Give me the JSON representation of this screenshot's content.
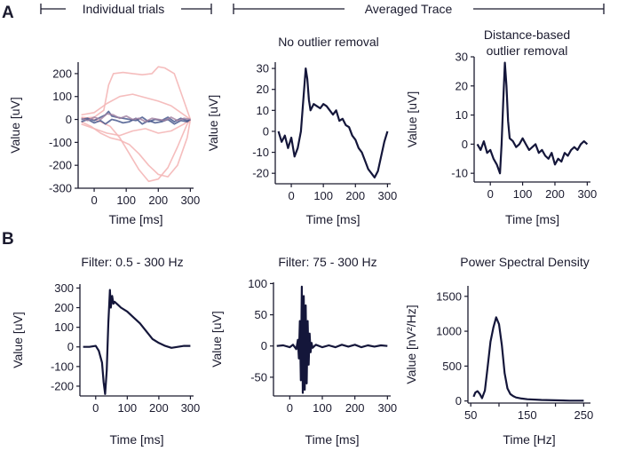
{
  "figure": {
    "panel_a": "A",
    "panel_b": "B",
    "header_left": "Individual trials",
    "header_right": "Averaged Trace",
    "colors": {
      "ink": "#1a1a2e",
      "trace": "#14163a",
      "trial_light": "#f4b6b6",
      "trial_dark": "#3d4f86",
      "trial_mid": "#a07fa0"
    }
  },
  "chart_data": [
    {
      "type": "line",
      "title": "",
      "xlabel": "Time [ms]",
      "ylabel": "Value [uV]",
      "xlim": [
        -50,
        310
      ],
      "ylim": [
        -300,
        250
      ],
      "xticks": [
        0,
        100,
        200,
        300
      ],
      "yticks": [
        -300,
        -200,
        -100,
        0,
        100,
        200
      ],
      "series": [
        {
          "name": "trial-1",
          "style": "light",
          "x": [
            -40,
            -10,
            20,
            50,
            80,
            110,
            140,
            170,
            200,
            230,
            260,
            290,
            300
          ],
          "y": [
            10,
            5,
            -10,
            -30,
            -80,
            -150,
            -220,
            -270,
            -260,
            -210,
            -120,
            -20,
            0
          ]
        },
        {
          "name": "trial-2",
          "style": "light",
          "x": [
            -40,
            -10,
            20,
            50,
            80,
            110,
            140,
            170,
            200,
            230,
            260,
            290,
            300
          ],
          "y": [
            -10,
            -30,
            -60,
            -80,
            -90,
            -110,
            -150,
            -200,
            -240,
            -250,
            -200,
            -80,
            0
          ]
        },
        {
          "name": "trial-3",
          "style": "light",
          "x": [
            -40,
            0,
            30,
            45,
            60,
            90,
            120,
            150,
            180,
            200,
            220,
            250,
            280,
            300
          ],
          "y": [
            5,
            10,
            40,
            150,
            200,
            205,
            200,
            195,
            200,
            230,
            225,
            200,
            80,
            0
          ]
        },
        {
          "name": "trial-4",
          "style": "light",
          "x": [
            -40,
            0,
            40,
            80,
            120,
            160,
            200,
            240,
            270,
            300
          ],
          "y": [
            20,
            30,
            70,
            100,
            110,
            95,
            80,
            60,
            30,
            0
          ]
        },
        {
          "name": "trial-5",
          "style": "light",
          "x": [
            -40,
            0,
            40,
            80,
            120,
            160,
            200,
            240,
            280,
            300
          ],
          "y": [
            -20,
            -40,
            -60,
            -70,
            -50,
            -40,
            -60,
            -50,
            -20,
            0
          ]
        },
        {
          "name": "trial-6",
          "style": "dark",
          "x": [
            -40,
            -20,
            0,
            20,
            35,
            45,
            55,
            70,
            90,
            110,
            130,
            150,
            170,
            190,
            210,
            230,
            250,
            270,
            290,
            300
          ],
          "y": [
            0,
            5,
            -5,
            10,
            20,
            35,
            15,
            10,
            5,
            0,
            -5,
            10,
            -10,
            0,
            -5,
            10,
            -10,
            5,
            -5,
            0
          ]
        },
        {
          "name": "trial-7",
          "style": "dark",
          "x": [
            -40,
            -20,
            0,
            20,
            35,
            45,
            55,
            70,
            90,
            110,
            130,
            150,
            170,
            190,
            210,
            230,
            250,
            270,
            290,
            300
          ],
          "y": [
            -10,
            0,
            -15,
            -5,
            -20,
            -10,
            0,
            -5,
            -15,
            -10,
            5,
            -20,
            -5,
            -15,
            -10,
            0,
            -20,
            -5,
            -10,
            0
          ]
        },
        {
          "name": "trial-8",
          "style": "mid",
          "x": [
            -40,
            -20,
            0,
            20,
            40,
            60,
            80,
            100,
            120,
            140,
            160,
            180,
            200,
            220,
            240,
            260,
            280,
            300
          ],
          "y": [
            5,
            -5,
            10,
            0,
            25,
            20,
            5,
            15,
            0,
            5,
            -10,
            5,
            0,
            -5,
            10,
            -5,
            5,
            0
          ]
        }
      ]
    },
    {
      "type": "line",
      "title": "No outlier removal",
      "xlabel": "Time [ms]",
      "ylabel": "Value [uV]",
      "xlim": [
        -50,
        310
      ],
      "ylim": [
        -25,
        33
      ],
      "xticks": [
        0,
        100,
        200,
        300
      ],
      "yticks": [
        -20,
        -10,
        0,
        10,
        20,
        30
      ],
      "series": [
        {
          "name": "average",
          "x": [
            -40,
            -30,
            -20,
            -10,
            0,
            10,
            20,
            30,
            35,
            40,
            45,
            50,
            55,
            60,
            70,
            80,
            90,
            100,
            110,
            120,
            130,
            140,
            150,
            160,
            170,
            180,
            190,
            200,
            210,
            220,
            230,
            240,
            250,
            260,
            270,
            280,
            290,
            300
          ],
          "y": [
            0,
            -5,
            -2,
            -8,
            -3,
            -12,
            -8,
            0,
            10,
            20,
            30,
            25,
            15,
            10,
            13,
            12,
            11,
            13,
            12,
            10,
            8,
            10,
            5,
            6,
            3,
            2,
            -2,
            -4,
            -8,
            -10,
            -14,
            -18,
            -20,
            -22,
            -19,
            -12,
            -5,
            0
          ]
        }
      ]
    },
    {
      "type": "line",
      "title": "Distance-based outlier removal",
      "xlabel": "Time [ms]",
      "ylabel": "Value [uV]",
      "xlim": [
        -50,
        310
      ],
      "ylim": [
        -13,
        30
      ],
      "xticks": [
        0,
        100,
        200,
        300
      ],
      "yticks": [
        -10,
        0,
        10,
        20,
        30
      ],
      "series": [
        {
          "name": "average",
          "x": [
            -40,
            -30,
            -20,
            -10,
            0,
            10,
            20,
            30,
            35,
            40,
            45,
            50,
            55,
            60,
            70,
            80,
            90,
            100,
            110,
            120,
            130,
            140,
            150,
            160,
            170,
            180,
            190,
            200,
            210,
            220,
            230,
            240,
            250,
            260,
            270,
            280,
            290,
            300
          ],
          "y": [
            0,
            -2,
            1,
            -3,
            -2,
            -5,
            -7,
            -10,
            0,
            15,
            28,
            20,
            8,
            2,
            1,
            -1,
            0,
            2,
            0,
            -2,
            -1,
            0,
            -3,
            -2,
            -4,
            -5,
            -3,
            -7,
            -5,
            -6,
            -3,
            -4,
            -2,
            -1,
            -2,
            0,
            1,
            0
          ]
        }
      ]
    },
    {
      "type": "line",
      "title": "Filter: 0.5 - 300 Hz",
      "xlabel": "Time [ms]",
      "ylabel": "Value [uV]",
      "xlim": [
        -50,
        310
      ],
      "ylim": [
        -250,
        320
      ],
      "xticks": [
        0,
        100,
        200,
        300
      ],
      "yticks": [
        -200,
        -100,
        0,
        100,
        200,
        300
      ],
      "series": [
        {
          "name": "filtered",
          "x": [
            -40,
            -20,
            0,
            10,
            20,
            25,
            30,
            35,
            40,
            45,
            48,
            52,
            56,
            60,
            70,
            80,
            100,
            120,
            140,
            160,
            180,
            200,
            220,
            240,
            260,
            280,
            300
          ],
          "y": [
            0,
            0,
            5,
            -20,
            -80,
            -180,
            -240,
            -120,
            120,
            290,
            200,
            260,
            220,
            230,
            215,
            200,
            180,
            150,
            120,
            80,
            40,
            20,
            5,
            -5,
            0,
            5,
            5
          ]
        }
      ]
    },
    {
      "type": "line",
      "title": "Filter: 75 - 300 Hz",
      "xlabel": "Time [ms]",
      "ylabel": "Value [uV]",
      "xlim": [
        -50,
        310
      ],
      "ylim": [
        -80,
        102
      ],
      "xticks": [
        0,
        100,
        200,
        300
      ],
      "yticks": [
        -50,
        0,
        50,
        100
      ],
      "series": [
        {
          "name": "filtered",
          "x": [
            -40,
            -20,
            0,
            10,
            20,
            25,
            28,
            31,
            34,
            37,
            40,
            43,
            46,
            49,
            52,
            55,
            58,
            61,
            64,
            67,
            70,
            80,
            100,
            120,
            140,
            160,
            180,
            200,
            220,
            240,
            260,
            280,
            300
          ],
          "y": [
            0,
            1,
            -2,
            2,
            -5,
            10,
            -20,
            40,
            -55,
            95,
            -75,
            80,
            -70,
            65,
            -60,
            40,
            -30,
            20,
            -10,
            5,
            -3,
            2,
            -2,
            1,
            -2,
            2,
            -1,
            2,
            -2,
            1,
            -1,
            1,
            0
          ]
        }
      ]
    },
    {
      "type": "line",
      "title": "Power Spectral Density",
      "xlabel": "Time [Hz]",
      "ylabel": "Value [nV²/Hz]",
      "xlim": [
        45,
        262
      ],
      "ylim": [
        -30,
        1650
      ],
      "xticks": [
        50,
        150,
        250
      ],
      "xticks_minor": [
        100,
        200
      ],
      "yticks": [
        0,
        500,
        1000,
        1500
      ],
      "series": [
        {
          "name": "psd",
          "x": [
            55,
            58,
            62,
            66,
            70,
            75,
            80,
            85,
            90,
            95,
            100,
            105,
            110,
            115,
            120,
            125,
            130,
            140,
            150,
            175,
            200,
            225,
            250
          ],
          "y": [
            60,
            120,
            140,
            100,
            40,
            150,
            500,
            850,
            1050,
            1200,
            1100,
            800,
            400,
            180,
            100,
            70,
            50,
            35,
            25,
            15,
            10,
            5,
            5
          ]
        }
      ]
    }
  ]
}
